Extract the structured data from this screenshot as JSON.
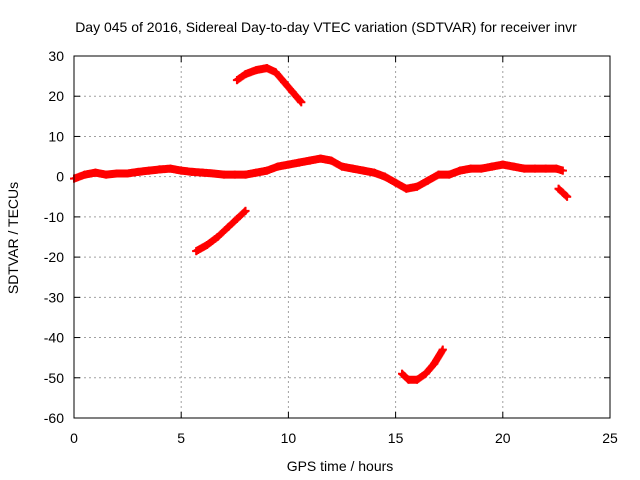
{
  "chart_data": {
    "type": "scatter",
    "title": "Day 045 of 2016, Sidereal Day-to-day VTEC variation (SDTVAR) for receiver invr",
    "xlabel": "GPS time / hours",
    "ylabel": "SDTVAR / TECUs",
    "xlim": [
      0,
      25
    ],
    "ylim": [
      -60,
      30
    ],
    "xticks": [
      0,
      5,
      10,
      15,
      20,
      25
    ],
    "yticks": [
      -60,
      -50,
      -40,
      -30,
      -20,
      -10,
      0,
      10,
      20,
      30
    ],
    "xtick_labels": [
      "0",
      "5",
      "10",
      "15",
      "20",
      "25"
    ],
    "ytick_labels": [
      "-60",
      "-50",
      "-40",
      "-30",
      "-20",
      "-10",
      "0",
      "10",
      "20",
      "30"
    ],
    "grid": true,
    "marker_color": "#ff0000",
    "series": [
      {
        "name": "main trace",
        "x": [
          0.0,
          0.5,
          1.0,
          1.5,
          2.0,
          2.5,
          3.0,
          3.5,
          4.0,
          4.5,
          5.0,
          5.5,
          6.0,
          6.5,
          7.0,
          7.5,
          8.0,
          8.5,
          9.0,
          9.5,
          10.0,
          10.5,
          11.0,
          11.5,
          12.0,
          12.5,
          13.0,
          13.5,
          14.0,
          14.5,
          15.0,
          15.5,
          16.0,
          16.5,
          17.0,
          17.5,
          18.0,
          18.5,
          19.0,
          19.5,
          20.0,
          20.5,
          21.0,
          21.5,
          22.0,
          22.5,
          22.8
        ],
        "y": [
          -0.5,
          0.5,
          1.0,
          0.5,
          0.8,
          0.8,
          1.2,
          1.5,
          1.8,
          2.0,
          1.5,
          1.2,
          1.0,
          0.8,
          0.5,
          0.5,
          0.5,
          1.0,
          1.5,
          2.5,
          3.0,
          3.5,
          4.0,
          4.5,
          4.0,
          2.5,
          2.0,
          1.5,
          1.0,
          0.0,
          -1.5,
          -3.0,
          -2.5,
          -1.0,
          0.5,
          0.5,
          1.5,
          2.0,
          2.0,
          2.5,
          3.0,
          2.5,
          2.0,
          2.0,
          2.0,
          2.0,
          1.5
        ]
      },
      {
        "name": "arc upper",
        "x": [
          7.6,
          8.0,
          8.5,
          9.0,
          9.4,
          9.8,
          10.2,
          10.6
        ],
        "y": [
          24.0,
          25.5,
          26.5,
          27.0,
          26.0,
          23.5,
          21.0,
          18.5
        ]
      },
      {
        "name": "arc lower-left",
        "x": [
          5.7,
          6.2,
          6.7,
          7.2,
          7.6,
          8.0
        ],
        "y": [
          -18.5,
          -17.0,
          -15.0,
          -12.5,
          -10.5,
          -8.5
        ]
      },
      {
        "name": "arc bottom",
        "x": [
          15.3,
          15.6,
          16.0,
          16.4,
          16.8,
          17.2
        ],
        "y": [
          -49.0,
          -50.5,
          -50.5,
          -49.0,
          -46.5,
          -43.0
        ]
      },
      {
        "name": "short segment",
        "x": [
          22.6,
          22.8,
          23.0
        ],
        "y": [
          -3.0,
          -4.0,
          -5.0
        ]
      }
    ]
  }
}
